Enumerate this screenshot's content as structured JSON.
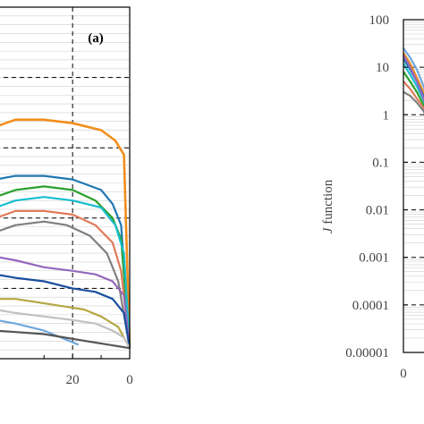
{
  "chart_data": [
    {
      "type": "line",
      "panel_label": "(a)",
      "x_axis": {
        "reversed": true,
        "tick_labels": [
          "20",
          "0"
        ],
        "ticks": [
          20,
          0
        ]
      },
      "xlim": [
        47,
        0
      ],
      "ylim": [
        0,
        1
      ],
      "grid": true,
      "series_colors": [
        "#f28e1c",
        "#1f77b4",
        "#2ca02c",
        "#17becf",
        "#e07b5a",
        "#7f7f7f",
        "#9467bd",
        "#1a4fa0",
        "#b5a642",
        "#6fa8dc",
        "#c0c0c0",
        "#555555"
      ],
      "series": [
        {
          "x": [
            47,
            40,
            30,
            20,
            10,
            5,
            2,
            0
          ],
          "y": [
            0.66,
            0.68,
            0.68,
            0.67,
            0.65,
            0.62,
            0.58,
            0.03
          ]
        },
        {
          "x": [
            47,
            40,
            30,
            20,
            10,
            6,
            3,
            0
          ],
          "y": [
            0.51,
            0.52,
            0.52,
            0.51,
            0.48,
            0.44,
            0.38,
            0.03
          ]
        },
        {
          "x": [
            47,
            40,
            30,
            20,
            12,
            6,
            3,
            0
          ],
          "y": [
            0.46,
            0.48,
            0.49,
            0.48,
            0.45,
            0.4,
            0.34,
            0.03
          ]
        },
        {
          "x": [
            47,
            40,
            30,
            20,
            10,
            5,
            2,
            0
          ],
          "y": [
            0.43,
            0.45,
            0.46,
            0.45,
            0.43,
            0.38,
            0.3,
            0.03
          ]
        },
        {
          "x": [
            47,
            40,
            30,
            20,
            12,
            6,
            3,
            0
          ],
          "y": [
            0.4,
            0.42,
            0.42,
            0.41,
            0.38,
            0.33,
            0.25,
            0.03
          ]
        },
        {
          "x": [
            47,
            40,
            30,
            22,
            14,
            8,
            4,
            0
          ],
          "y": [
            0.36,
            0.38,
            0.39,
            0.38,
            0.35,
            0.3,
            0.22,
            0.03
          ]
        },
        {
          "x": [
            47,
            40,
            30,
            20,
            12,
            6,
            2,
            0
          ],
          "y": [
            0.29,
            0.28,
            0.26,
            0.25,
            0.24,
            0.22,
            0.18,
            0.03
          ]
        },
        {
          "x": [
            47,
            40,
            30,
            20,
            12,
            6,
            2,
            0
          ],
          "y": [
            0.24,
            0.23,
            0.22,
            0.2,
            0.19,
            0.17,
            0.13,
            0.03
          ]
        },
        {
          "x": [
            47,
            40,
            32,
            24,
            16,
            10,
            4,
            0
          ],
          "y": [
            0.17,
            0.17,
            0.16,
            0.15,
            0.14,
            0.12,
            0.09,
            0.03
          ]
        },
        {
          "x": [
            47,
            40,
            30,
            24,
            18
          ],
          "y": [
            0.11,
            0.1,
            0.08,
            0.06,
            0.04
          ]
        },
        {
          "x": [
            47,
            40,
            30,
            20,
            12,
            6,
            2,
            0
          ],
          "y": [
            0.14,
            0.13,
            0.12,
            0.11,
            0.1,
            0.08,
            0.06,
            0.03
          ]
        },
        {
          "x": [
            47,
            30,
            15,
            0
          ],
          "y": [
            0.08,
            0.07,
            0.05,
            0.03
          ]
        }
      ]
    },
    {
      "type": "line",
      "ylabel": "J function",
      "y_scale": "log",
      "ylim": [
        1e-05,
        100
      ],
      "y_tick_labels": [
        "100",
        "10",
        "1",
        "0.1",
        "0.01",
        "0.001",
        "0.0001",
        "0.00001"
      ],
      "y_ticks": [
        100,
        10,
        1,
        0.1,
        0.01,
        0.001,
        0.0001,
        1e-05
      ],
      "x_tick_labels": [
        "0"
      ],
      "xlim": [
        0,
        1
      ],
      "grid": true,
      "series_colors": [
        "#f28e1c",
        "#1f77b4",
        "#2ca02c",
        "#17becf",
        "#e07b5a",
        "#7f7f7f",
        "#9467bd",
        "#6fa8dc"
      ],
      "series": [
        {
          "x": [
            0,
            0.03,
            0.06,
            0.09,
            0.12
          ],
          "y": [
            20,
            12,
            6,
            3,
            1.2
          ]
        },
        {
          "x": [
            0,
            0.03,
            0.06,
            0.09,
            0.12
          ],
          "y": [
            15,
            9,
            5,
            2.5,
            1.0
          ]
        },
        {
          "x": [
            0,
            0.03,
            0.06,
            0.09,
            0.12
          ],
          "y": [
            8,
            5,
            3,
            1.6,
            0.8
          ]
        },
        {
          "x": [
            0,
            0.03,
            0.06,
            0.09,
            0.12
          ],
          "y": [
            12,
            7,
            4,
            2.0,
            0.9
          ]
        },
        {
          "x": [
            0,
            0.03,
            0.06,
            0.09,
            0.12
          ],
          "y": [
            5,
            3.5,
            2.2,
            1.4,
            0.7
          ]
        },
        {
          "x": [
            0,
            0.03,
            0.06,
            0.09,
            0.12
          ],
          "y": [
            3,
            2.5,
            1.8,
            1.2,
            0.6
          ]
        },
        {
          "x": [
            0,
            0.03,
            0.06,
            0.09,
            0.12
          ],
          "y": [
            18,
            10,
            5,
            2.2,
            1.0
          ]
        },
        {
          "x": [
            0,
            0.03,
            0.06,
            0.09,
            0.12
          ],
          "y": [
            25,
            16,
            9,
            4,
            1.5
          ]
        }
      ]
    }
  ]
}
